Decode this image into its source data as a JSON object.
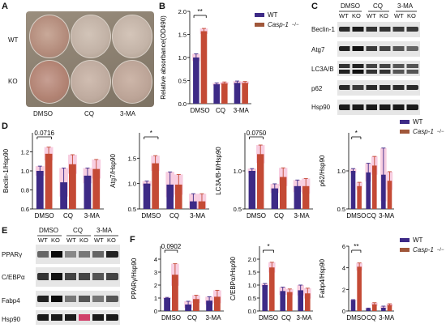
{
  "colors": {
    "wt": "#3d2a86",
    "ko": "#c44a35",
    "error_pink": "#f2a6c8",
    "plate_bg": "#8c8070",
    "well": "#c9b3a0",
    "blot_bg": "#e9e9e9",
    "band": "#2a2a2a"
  },
  "panels": {
    "A": {
      "letter": "A",
      "row_labels": [
        "WT",
        "KO"
      ],
      "col_labels": [
        "DMSO",
        "CQ",
        "3-MA"
      ]
    },
    "B": {
      "letter": "B"
    },
    "C": {
      "letter": "C",
      "treatments": [
        "DMSO",
        "CQ",
        "3-MA"
      ],
      "genotypes": [
        "WT",
        "KO",
        "WT",
        "KO",
        "WT",
        "KO"
      ],
      "proteins": [
        "Beclin-1",
        "Atg7",
        "LC3A/B",
        "p62",
        "Hsp90"
      ]
    },
    "D": {
      "letter": "D"
    },
    "E": {
      "letter": "E",
      "treatments": [
        "DMSO",
        "CQ",
        "3-MA"
      ],
      "genotypes": [
        "WT",
        "KO",
        "WT",
        "KO",
        "WT",
        "KO"
      ],
      "proteins": [
        "PPARγ",
        "C/EBPα",
        "Fabp4",
        "Hsp90"
      ]
    },
    "F": {
      "letter": "F"
    }
  },
  "legend": {
    "wt": "WT",
    "ko": "Casp-1",
    "ko_sup": "−/−"
  },
  "chart_data": [
    {
      "id": "B",
      "type": "bar",
      "categories": [
        "DMSO",
        "CQ",
        "3-MA"
      ],
      "series": [
        {
          "name": "WT",
          "values": [
            1.0,
            0.42,
            0.45
          ]
        },
        {
          "name": "Casp-1−/−",
          "values": [
            1.57,
            0.44,
            0.45
          ]
        }
      ],
      "errors": [
        [
          0.08,
          0.03,
          0.04
        ],
        [
          0.06,
          0.03,
          0.03
        ]
      ],
      "ylabel": "Relative absorbance(OD490)",
      "ylim": [
        0,
        2.0
      ],
      "yticks": [
        0.0,
        0.5,
        1.0,
        1.5,
        2.0
      ],
      "sig": {
        "label": "**",
        "group": 0
      }
    },
    {
      "id": "D1",
      "type": "bar",
      "categories": [
        "DMSO",
        "CQ",
        "3-MA"
      ],
      "series": [
        {
          "name": "WT",
          "values": [
            1.0,
            0.88,
            0.95
          ]
        },
        {
          "name": "Casp-1−/−",
          "values": [
            1.18,
            1.07,
            1.02
          ]
        }
      ],
      "errors": [
        [
          0.05,
          0.15,
          0.08
        ],
        [
          0.07,
          0.1,
          0.1
        ]
      ],
      "ylabel": "Beclin-1/Hsp90",
      "ylim": [
        0.6,
        1.4
      ],
      "yticks": [
        0.6,
        0.8,
        1.0,
        1.2
      ],
      "sig": {
        "label": "0.0716",
        "group": 0
      }
    },
    {
      "id": "D2",
      "type": "bar",
      "categories": [
        "DMSO",
        "CQ",
        "3-MA"
      ],
      "series": [
        {
          "name": "WT",
          "values": [
            1.0,
            0.98,
            0.65
          ]
        },
        {
          "name": "Casp-1−/−",
          "values": [
            1.4,
            0.98,
            0.65
          ]
        }
      ],
      "errors": [
        [
          0.05,
          0.25,
          0.15
        ],
        [
          0.15,
          0.2,
          0.15
        ]
      ],
      "ylabel": "Atg7/Hsp90",
      "ylim": [
        0.5,
        2.0
      ],
      "yticks": [
        0.5,
        1.0,
        1.5
      ],
      "sig": {
        "label": "*",
        "group": 0
      }
    },
    {
      "id": "D3",
      "type": "bar",
      "categories": [
        "DMSO",
        "CQ",
        "3-MA"
      ],
      "series": [
        {
          "name": "WT",
          "values": [
            1.0,
            0.77,
            0.8
          ]
        },
        {
          "name": "Casp-1−/−",
          "values": [
            1.22,
            0.92,
            0.8
          ]
        }
      ],
      "errors": [
        [
          0.03,
          0.06,
          0.08
        ],
        [
          0.12,
          0.12,
          0.1
        ]
      ],
      "ylabel": "LC3A/B-Ⅱ/Hsp90",
      "ylim": [
        0.5,
        1.5
      ],
      "yticks": [
        0.5,
        1.0
      ],
      "sig": {
        "label": "0.0750",
        "group": 0
      }
    },
    {
      "id": "D4",
      "type": "bar",
      "categories": [
        "DMSO",
        "CQ",
        "3-MA"
      ],
      "series": [
        {
          "name": "WT",
          "values": [
            1.0,
            0.98,
            0.95
          ]
        },
        {
          "name": "Casp-1−/−",
          "values": [
            0.8,
            1.07,
            0.87
          ]
        }
      ],
      "errors": [
        [
          0.03,
          0.12,
          0.35
        ],
        [
          0.05,
          0.12,
          0.12
        ]
      ],
      "ylabel": "p62/Hsp90",
      "ylim": [
        0.5,
        1.5
      ],
      "yticks": [
        0.5,
        1.0
      ],
      "sig": {
        "label": "*",
        "group": 0
      }
    },
    {
      "id": "F1",
      "type": "bar",
      "categories": [
        "DMSO",
        "CQ",
        "3-MA"
      ],
      "series": [
        {
          "name": "WT",
          "values": [
            1.0,
            0.5,
            0.8
          ]
        },
        {
          "name": "Casp-1−/−",
          "values": [
            2.8,
            0.92,
            1.1
          ]
        }
      ],
      "errors": [
        [
          0.05,
          0.25,
          0.3
        ],
        [
          0.85,
          0.3,
          0.5
        ]
      ],
      "ylabel": "PPARγ/Hsp90",
      "ylim": [
        0,
        5
      ],
      "yticks": [
        0,
        1,
        2,
        3,
        4
      ],
      "sig": {
        "label": "0.0902",
        "group": 0
      }
    },
    {
      "id": "F2",
      "type": "bar",
      "categories": [
        "DMSO",
        "CQ",
        "3-MA"
      ],
      "series": [
        {
          "name": "WT",
          "values": [
            1.0,
            0.77,
            0.8
          ]
        },
        {
          "name": "Casp-1−/−",
          "values": [
            1.68,
            0.73,
            0.68
          ]
        }
      ],
      "errors": [
        [
          0.06,
          0.15,
          0.2
        ],
        [
          0.2,
          0.12,
          0.2
        ]
      ],
      "ylabel": "C/EBPα/Hsp90",
      "ylim": [
        0,
        2.5
      ],
      "yticks": [
        0.0,
        0.5,
        1.0,
        1.5,
        2.0
      ],
      "sig": {
        "label": "*",
        "group": 0
      }
    },
    {
      "id": "F3",
      "type": "bar",
      "categories": [
        "DMSO",
        "CQ",
        "3-MA"
      ],
      "series": [
        {
          "name": "WT",
          "values": [
            1.0,
            0.22,
            0.3
          ]
        },
        {
          "name": "Casp-1−/−",
          "values": [
            4.1,
            0.62,
            0.55
          ]
        }
      ],
      "errors": [
        [
          0.05,
          0.05,
          0.15
        ],
        [
          0.35,
          0.15,
          0.12
        ]
      ],
      "ylabel": "Fabp4/Hsp90",
      "ylim": [
        0,
        6
      ],
      "yticks": [
        0,
        2,
        4,
        6
      ],
      "sig": {
        "label": "**",
        "group": 0
      }
    }
  ]
}
